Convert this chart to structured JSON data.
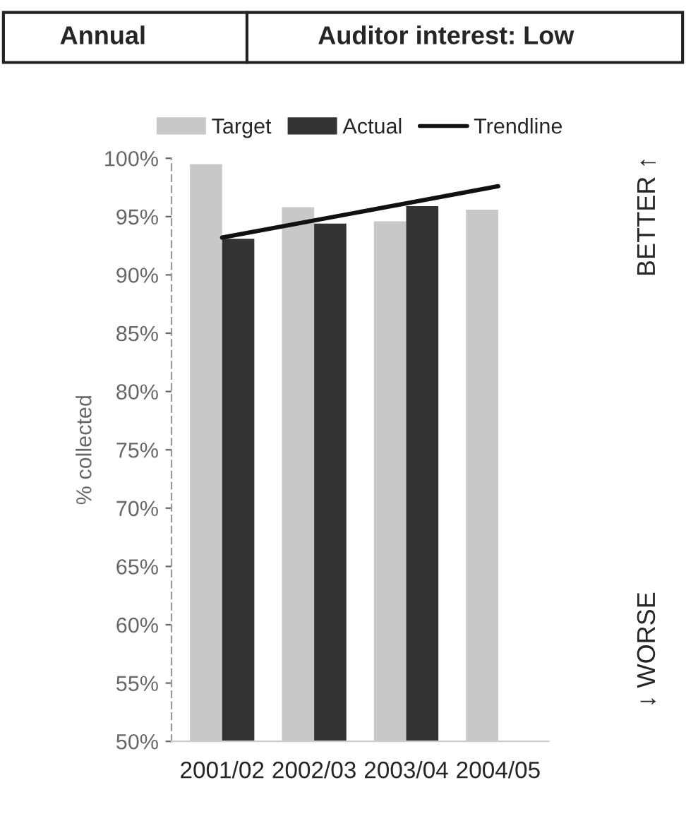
{
  "chart_data": {
    "type": "bar",
    "categories": [
      "2001/02",
      "2002/03",
      "2003/04",
      "2004/05"
    ],
    "ylabel": "% collected",
    "series": [
      {
        "name": "Target",
        "color": "#c8c8c8",
        "values": [
          99.5,
          95.8,
          94.6,
          95.6
        ]
      },
      {
        "name": "Actual",
        "color": "#333333",
        "values": [
          93.1,
          94.4,
          95.9,
          null
        ]
      },
      {
        "name": "Trendline",
        "type": "line",
        "color": "#111111",
        "x": [
          "2001/02",
          "2004/05"
        ],
        "values": [
          93.2,
          97.6
        ]
      }
    ],
    "ylim": [
      50,
      100
    ],
    "yticks": [
      {
        "value": 50,
        "label": "50%"
      },
      {
        "value": 55,
        "label": "55%"
      },
      {
        "value": 60,
        "label": "60%"
      },
      {
        "value": 65,
        "label": "65%"
      },
      {
        "value": 70,
        "label": "70%"
      },
      {
        "value": 75,
        "label": "75%"
      },
      {
        "value": 80,
        "label": "80%"
      },
      {
        "value": 85,
        "label": "85%"
      },
      {
        "value": 90,
        "label": "90%"
      },
      {
        "value": 95,
        "label": "95%"
      },
      {
        "value": 100,
        "label": "100%"
      }
    ],
    "legend": "top",
    "grid": false,
    "annotations": [
      "Annual",
      "Auditor interest: Low",
      "BETTER ↑",
      "↓ WORSE"
    ]
  }
}
